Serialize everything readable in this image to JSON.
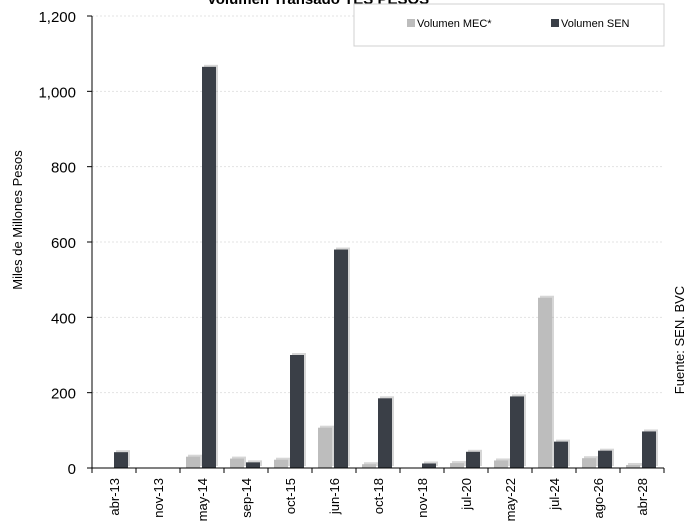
{
  "chart_data": {
    "type": "bar",
    "title": "Volumen Transado TES PESOS",
    "ylabel": "Miles de Millones Pesos",
    "xlabel": "",
    "ylim": [
      0,
      1200
    ],
    "yticks": [
      0,
      200,
      400,
      600,
      800,
      1000,
      1200
    ],
    "ytick_labels": [
      "0",
      "200",
      "400",
      "600",
      "800",
      "1,000",
      "1,200"
    ],
    "categories": [
      "abr-13",
      "nov-13",
      "may-14",
      "sep-14",
      "oct-15",
      "jun-16",
      "oct-18",
      "nov-18",
      "jul-20",
      "may-22",
      "jul-24",
      "ago-26",
      "abr-28"
    ],
    "series": [
      {
        "name": "Volumen MEC*",
        "color": "#bdbdbd",
        "values": [
          0,
          0,
          30,
          25,
          22,
          107,
          10,
          0,
          13,
          20,
          452,
          26,
          8
        ]
      },
      {
        "name": "Volumen SEN",
        "color": "#3a3f47",
        "values": [
          42,
          0,
          1065,
          15,
          300,
          580,
          185,
          12,
          43,
          190,
          70,
          46,
          97
        ]
      }
    ],
    "grid": true,
    "legend_position": "top-right",
    "source": "Fuente: SEN, BVC"
  }
}
